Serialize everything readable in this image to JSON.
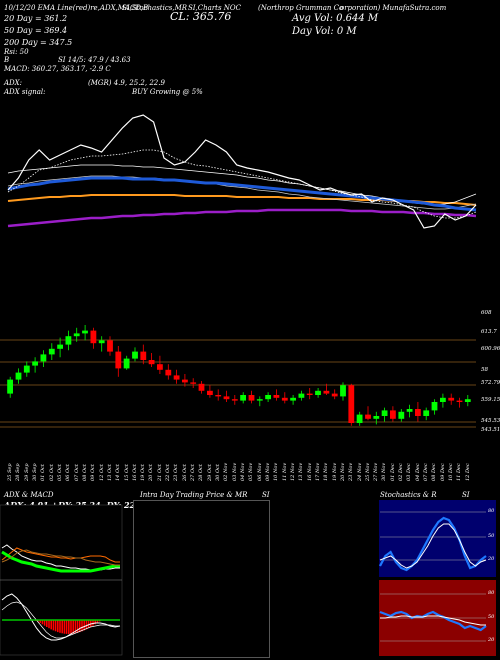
{
  "header": {
    "l1": "10/12/20 EMA Line(red)re,ADX,MACD,B",
    "l1b": "SI,Stochastics,MR",
    "l1c": "SI,Charts NOC",
    "l1d": "(Northrop Grumman Co",
    "l1e": "orporation) MunafaSutra.com",
    "ma20": "20 Day = 361.2",
    "ma50": "50 Day = 369.4",
    "ma200": "200 Day = 347.5",
    "close": "CL: 365.76",
    "avgvol": "Avg Vol: 0.644  M",
    "dayvol": "Day Vol: 0  M",
    "rsi": "Rsi: 50",
    "brsi": "B",
    "rsi_vals": "SI 14/5: 47.9 / 43.63",
    "macd": "MACD: 360.27, 363.17, -2.9 C",
    "adx_label": "ADX:",
    "adx_vals": "(MGR) 4.9, 25.2, 22.9",
    "adx_signal": "ADX  signal:",
    "buy": "BUY Growing @ 5%"
  },
  "price_axis": [
    "608",
    "613.7",
    "600.96",
    "58",
    "572.79",
    "559.15",
    "545.53",
    "543.51"
  ],
  "dates": [
    "25 Sep",
    "28 Sep",
    "29 Sep",
    "30 Sep",
    "01 Oct",
    "02 Oct",
    "05 Oct",
    "06 Oct",
    "07 Oct",
    "08 Oct",
    "09 Oct",
    "12 Oct",
    "13 Oct",
    "14 Oct",
    "15 Oct",
    "16 Oct",
    "19 Oct",
    "20 Oct",
    "21 Oct",
    "22 Oct",
    "23 Oct",
    "26 Oct",
    "27 Oct",
    "28 Oct",
    "29 Oct",
    "30 Oct",
    "02 Nov",
    "03 Nov",
    "04 Nov",
    "05 Nov",
    "06 Nov",
    "09 Nov",
    "10 Nov",
    "11 Nov",
    "12 Nov",
    "13 Nov",
    "16 Nov",
    "17 Nov",
    "18 Nov",
    "19 Nov",
    "20 Nov",
    "23 Nov",
    "24 Nov",
    "25 Nov",
    "27 Nov",
    "30 Nov",
    "01 Dec",
    "02 Dec",
    "03 Dec",
    "04 Dec",
    "07 Dec",
    "08 Dec",
    "09 Dec",
    "10 Dec",
    "11 Dec",
    "12 Dec"
  ],
  "panels": {
    "p1_title": "ADX  & MACD",
    "p1_vals": "ADX: 4.91  +DY: 25.24  -DY: 22.87",
    "p2_title": "Intra  Day Trading Price  & MR",
    "p2_title2": "SI",
    "p3_title": "Stochastics & R",
    "p3_title2": "SI",
    "stoch_ticks": [
      "80",
      "50",
      "20"
    ],
    "rsi_ticks": [
      "80",
      "50",
      "20"
    ]
  },
  "colors": {
    "bg": "#000000",
    "up": "#00ff00",
    "down": "#ff0000",
    "ema20": "#1e5ad8",
    "ema50": "#ff9a1e",
    "ema200": "#9b1ec8",
    "stoch_bg": "#00006e",
    "rsi_bg": "#8b0000"
  },
  "chart_data": {
    "type": "candlestick",
    "title": "10/12/20 EMA Line(red)re,ADX,MACD,BSI,Stochastics,MRSI,Charts NOC",
    "candles": [
      [
        566,
        578,
        563,
        576
      ],
      [
        576,
        584,
        573,
        581
      ],
      [
        581,
        589,
        578,
        586
      ],
      [
        586,
        592,
        581,
        589
      ],
      [
        589,
        597,
        585,
        594
      ],
      [
        594,
        602,
        590,
        598
      ],
      [
        598,
        606,
        592,
        601
      ],
      [
        601,
        611,
        597,
        607
      ],
      [
        607,
        613,
        603,
        609
      ],
      [
        609,
        615,
        604,
        611
      ],
      [
        611,
        613,
        598,
        602
      ],
      [
        602,
        607,
        596,
        604
      ],
      [
        604,
        607,
        593,
        596
      ],
      [
        596,
        600,
        578,
        584
      ],
      [
        584,
        593,
        583,
        591
      ],
      [
        591,
        599,
        589,
        596
      ],
      [
        596,
        601,
        587,
        590
      ],
      [
        590,
        595,
        585,
        587
      ],
      [
        587,
        593,
        580,
        583
      ],
      [
        583,
        587,
        576,
        579
      ],
      [
        579,
        583,
        573,
        576
      ],
      [
        576,
        580,
        571,
        574
      ],
      [
        574,
        577,
        570,
        573
      ],
      [
        573,
        575,
        566,
        568
      ],
      [
        568,
        572,
        563,
        565
      ],
      [
        565,
        569,
        561,
        564
      ],
      [
        564,
        568,
        560,
        562
      ],
      [
        562,
        565,
        558,
        561
      ],
      [
        561,
        567,
        559,
        565
      ],
      [
        565,
        568,
        559,
        561
      ],
      [
        561,
        564,
        557,
        562
      ],
      [
        562,
        567,
        560,
        565
      ],
      [
        565,
        569,
        561,
        563
      ],
      [
        563,
        567,
        559,
        561
      ],
      [
        561,
        565,
        558,
        563
      ],
      [
        563,
        568,
        561,
        566
      ],
      [
        566,
        570,
        562,
        565
      ],
      [
        565,
        570,
        563,
        568
      ],
      [
        568,
        573,
        565,
        566
      ],
      [
        566,
        569,
        562,
        564
      ],
      [
        564,
        574,
        561,
        572
      ],
      [
        572,
        573,
        543,
        545
      ],
      [
        545,
        553,
        543,
        551
      ],
      [
        551,
        557,
        547,
        548
      ],
      [
        548,
        553,
        544,
        550
      ],
      [
        550,
        556,
        546,
        554
      ],
      [
        554,
        557,
        546,
        548
      ],
      [
        548,
        555,
        546,
        553
      ],
      [
        553,
        558,
        549,
        555
      ],
      [
        555,
        560,
        546,
        550
      ],
      [
        550,
        556,
        547,
        554
      ],
      [
        554,
        562,
        551,
        560
      ],
      [
        560,
        566,
        556,
        563
      ],
      [
        563,
        566,
        558,
        561
      ],
      [
        561,
        563,
        556,
        560
      ],
      [
        560,
        565,
        557,
        562
      ]
    ],
    "ylim": [
      540,
      620
    ]
  }
}
